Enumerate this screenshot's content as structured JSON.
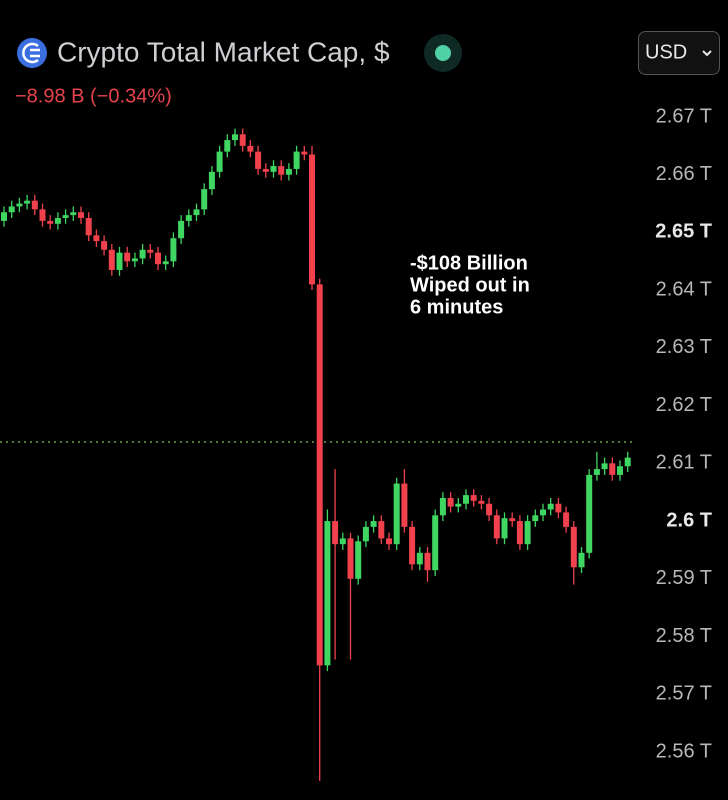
{
  "header": {
    "title": "Crypto Total Market Cap, $",
    "change": "−8.98 B (−0.34%)",
    "currency": "USD"
  },
  "chart_data": {
    "type": "candlestick",
    "annotation": [
      "-$108 Billion",
      "Wiped out in",
      "6 minutes"
    ],
    "up_color": "#3fd661",
    "down_color": "#f0414d",
    "price_line": 2.6137,
    "price_line_color": "#7fbf5f",
    "ylim": [
      2.553,
      2.674
    ],
    "yticks": [
      {
        "value": 2.56,
        "label": "2.56 T"
      },
      {
        "value": 2.57,
        "label": "2.57 T"
      },
      {
        "value": 2.58,
        "label": "2.58 T"
      },
      {
        "value": 2.59,
        "label": "2.59 T"
      },
      {
        "value": 2.6,
        "label": "2.6 T"
      },
      {
        "value": 2.61,
        "label": "2.61 T"
      },
      {
        "value": 2.62,
        "label": "2.62 T"
      },
      {
        "value": 2.63,
        "label": "2.63 T"
      },
      {
        "value": 2.64,
        "label": "2.64 T"
      },
      {
        "value": 2.65,
        "label": "2.65 T"
      },
      {
        "value": 2.66,
        "label": "2.66 T"
      },
      {
        "value": 2.67,
        "label": "2.67 T"
      }
    ],
    "highlighted_yticks": [
      2.6,
      2.65
    ],
    "open": [
      2.652,
      2.6535,
      2.6545,
      2.655,
      2.6555,
      2.654,
      2.652,
      2.6515,
      2.6525,
      2.653,
      2.6535,
      2.6525,
      2.6495,
      2.6485,
      2.647,
      2.6435,
      2.6465,
      2.645,
      2.6455,
      2.647,
      2.6465,
      2.6445,
      2.645,
      2.649,
      2.652,
      2.653,
      2.654,
      2.6575,
      2.6605,
      2.664,
      2.666,
      2.667,
      2.665,
      2.664,
      2.661,
      2.6605,
      2.6615,
      2.66,
      2.661,
      2.664,
      2.6635,
      2.641,
      2.575,
      2.6,
      2.596,
      2.597,
      2.59,
      2.5965,
      2.599,
      2.6,
      2.597,
      2.596,
      2.6065,
      2.599,
      2.5925,
      2.5945,
      2.5915,
      2.601,
      2.604,
      2.6025,
      2.603,
      2.6045,
      2.6035,
      2.603,
      2.601,
      2.597,
      2.6005,
      2.6,
      2.596,
      2.6,
      2.601,
      2.602,
      2.603,
      2.6015,
      2.599,
      2.592,
      2.5945,
      2.608,
      2.609,
      2.61,
      2.608,
      2.6095
    ],
    "high": [
      2.6545,
      2.6555,
      2.656,
      2.6565,
      2.6565,
      2.655,
      2.653,
      2.6535,
      2.654,
      2.6545,
      2.6545,
      2.6535,
      2.6505,
      2.6495,
      2.648,
      2.6475,
      2.6475,
      2.6465,
      2.648,
      2.648,
      2.6475,
      2.646,
      2.65,
      2.653,
      2.654,
      2.655,
      2.6585,
      2.6615,
      2.665,
      2.667,
      2.668,
      2.668,
      2.666,
      2.665,
      2.662,
      2.6625,
      2.6625,
      2.662,
      2.665,
      2.665,
      2.665,
      2.642,
      2.602,
      2.609,
      2.598,
      2.598,
      2.5975,
      2.6,
      2.601,
      2.601,
      2.598,
      2.6075,
      2.609,
      2.6,
      2.5955,
      2.5955,
      2.602,
      2.605,
      2.605,
      2.604,
      2.6055,
      2.6055,
      2.6045,
      2.604,
      2.602,
      2.6015,
      2.6015,
      2.601,
      2.601,
      2.602,
      2.603,
      2.604,
      2.604,
      2.6025,
      2.6,
      2.5955,
      2.609,
      2.612,
      2.611,
      2.611,
      2.6105,
      2.612
    ],
    "low": [
      2.651,
      2.6525,
      2.6535,
      2.654,
      2.653,
      2.651,
      2.6505,
      2.6505,
      2.6515,
      2.652,
      2.6515,
      2.6485,
      2.6475,
      2.646,
      2.6425,
      2.6425,
      2.644,
      2.644,
      2.6445,
      2.6455,
      2.6435,
      2.6435,
      2.644,
      2.648,
      2.651,
      2.652,
      2.653,
      2.6565,
      2.6595,
      2.663,
      2.665,
      2.664,
      2.663,
      2.66,
      2.6595,
      2.6595,
      2.659,
      2.659,
      2.66,
      2.6625,
      2.64,
      2.555,
      2.574,
      2.576,
      2.595,
      2.576,
      2.589,
      2.5955,
      2.598,
      2.596,
      2.595,
      2.595,
      2.598,
      2.5915,
      2.5915,
      2.5895,
      2.5905,
      2.6,
      2.6015,
      2.6015,
      2.602,
      2.6025,
      2.602,
      2.6,
      2.596,
      2.596,
      2.599,
      2.595,
      2.595,
      2.599,
      2.6,
      2.601,
      2.6005,
      2.598,
      2.589,
      2.591,
      2.5935,
      2.607,
      2.608,
      2.607,
      2.607,
      2.6085
    ],
    "close": [
      2.6535,
      2.6545,
      2.655,
      2.6555,
      2.654,
      2.652,
      2.6515,
      2.6525,
      2.653,
      2.6535,
      2.6525,
      2.6495,
      2.6485,
      2.647,
      2.6435,
      2.6465,
      2.645,
      2.6455,
      2.647,
      2.6465,
      2.6445,
      2.645,
      2.649,
      2.652,
      2.653,
      2.654,
      2.6575,
      2.6605,
      2.664,
      2.666,
      2.667,
      2.665,
      2.664,
      2.661,
      2.6605,
      2.6615,
      2.66,
      2.661,
      2.664,
      2.6635,
      2.641,
      2.575,
      2.6,
      2.596,
      2.597,
      2.59,
      2.5965,
      2.599,
      2.6,
      2.597,
      2.596,
      2.6065,
      2.599,
      2.5925,
      2.5945,
      2.5915,
      2.601,
      2.604,
      2.6025,
      2.603,
      2.6045,
      2.6035,
      2.603,
      2.601,
      2.597,
      2.6005,
      2.6,
      2.596,
      2.6,
      2.601,
      2.602,
      2.603,
      2.6015,
      2.599,
      2.592,
      2.5945,
      2.608,
      2.609,
      2.61,
      2.608,
      2.6095,
      2.611
    ]
  }
}
